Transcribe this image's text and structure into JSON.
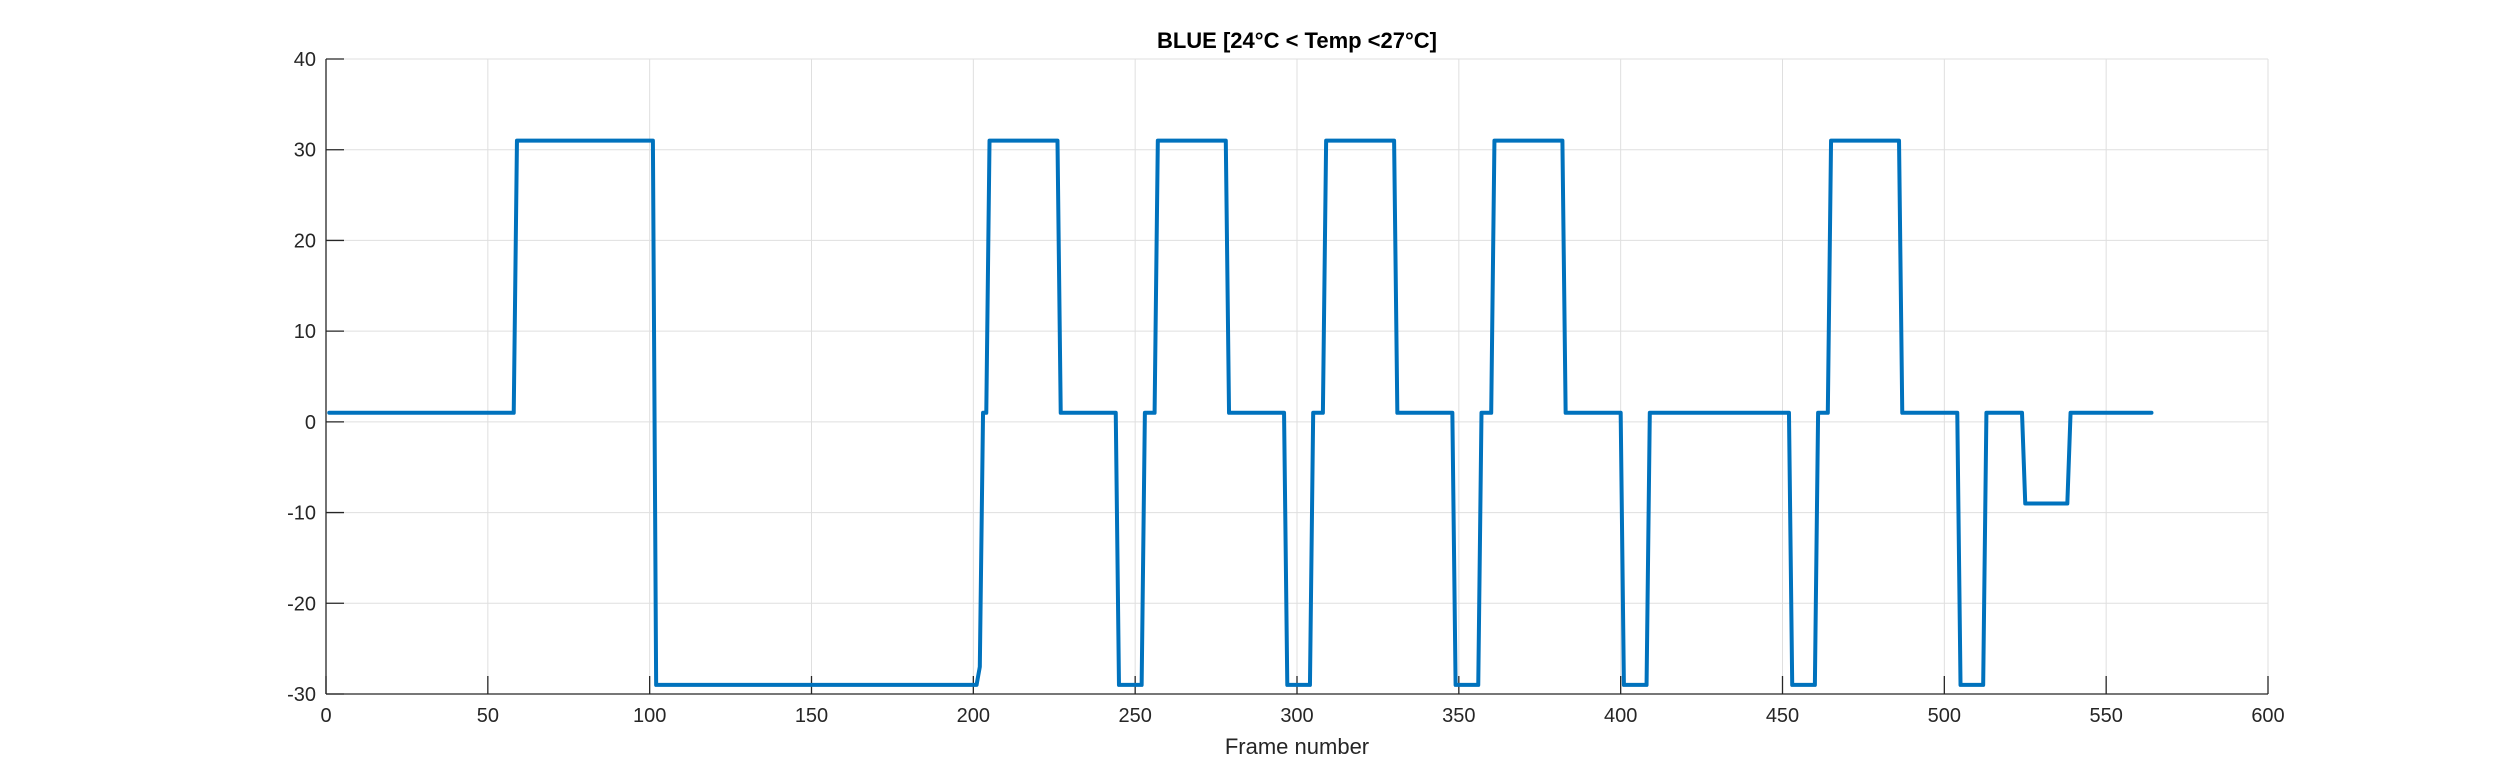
{
  "chart_data": {
    "type": "line",
    "title": "BLUE [24°C < Temp <27°C]",
    "xlabel": "Frame number",
    "ylabel": "",
    "xlim": [
      0,
      600
    ],
    "ylim": [
      -30,
      40
    ],
    "xticks": [
      0,
      50,
      100,
      150,
      200,
      250,
      300,
      350,
      400,
      450,
      500,
      550,
      600
    ],
    "yticks": [
      -30,
      -20,
      -10,
      0,
      10,
      20,
      30,
      40
    ],
    "grid": true,
    "series_color": "#0072bd",
    "series": [
      {
        "x": [
          1,
          58,
          59,
          101,
          102,
          201,
          202,
          203,
          204,
          205,
          226,
          227,
          244,
          245,
          252,
          253,
          254,
          256,
          257,
          278,
          279,
          296,
          297,
          304,
          305,
          306,
          308,
          309,
          330,
          331,
          348,
          349,
          356,
          357,
          358,
          360,
          361,
          382,
          383,
          400,
          401,
          408,
          409,
          452,
          453,
          460,
          461,
          462,
          464,
          465,
          486,
          487,
          504,
          505,
          512,
          513,
          524,
          525,
          538,
          539,
          564
        ],
        "y": [
          1,
          1,
          31,
          31,
          -29,
          -29,
          -27,
          1,
          1,
          31,
          31,
          1,
          1,
          -29,
          -29,
          1,
          1,
          1,
          31,
          31,
          1,
          1,
          -29,
          -29,
          1,
          1,
          1,
          31,
          31,
          1,
          1,
          -29,
          -29,
          1,
          1,
          1,
          31,
          31,
          1,
          1,
          -29,
          -29,
          1,
          1,
          -29,
          -29,
          1,
          1,
          1,
          31,
          31,
          1,
          1,
          -29,
          -29,
          1,
          1,
          -9,
          -9,
          1,
          1
        ]
      }
    ]
  }
}
